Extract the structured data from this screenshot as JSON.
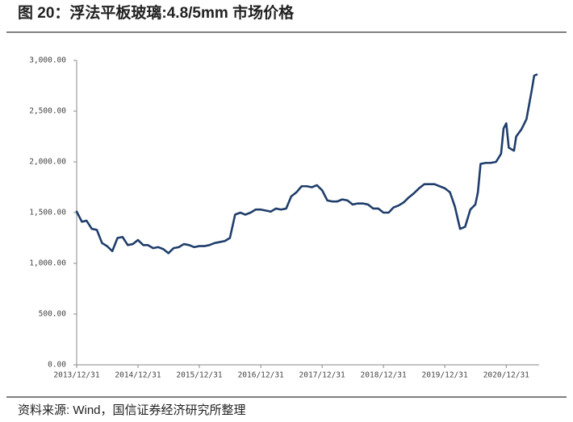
{
  "chart_data": {
    "type": "line",
    "title": "图 20：浮法平板玻璃:4.8/5mm 市场价格",
    "source": "资料来源: Wind，国信证券经济研究所整理",
    "xlim": [
      "2013/12/31",
      "2021/06/30"
    ],
    "xticks": [
      "2013/12/31",
      "2014/12/31",
      "2015/12/31",
      "2016/12/31",
      "2017/12/31",
      "2018/12/31",
      "2019/12/31",
      "2020/12/31"
    ],
    "ylim": [
      0,
      3000
    ],
    "yticks": [
      {
        "value": 0,
        "label": "0.00"
      },
      {
        "value": 500,
        "label": "500.00"
      },
      {
        "value": 1000,
        "label": "1,000.00"
      },
      {
        "value": 1500,
        "label": "1,500.00"
      },
      {
        "value": 2000,
        "label": "2,000.00"
      },
      {
        "value": 2500,
        "label": "2,500.00"
      },
      {
        "value": 3000,
        "label": "3,000.00"
      }
    ],
    "x": [
      "2013/12/31",
      "2014/01/31",
      "2014/02/28",
      "2014/03/31",
      "2014/04/30",
      "2014/05/31",
      "2014/06/30",
      "2014/07/31",
      "2014/08/31",
      "2014/09/30",
      "2014/10/31",
      "2014/11/30",
      "2014/12/31",
      "2015/01/31",
      "2015/02/28",
      "2015/03/31",
      "2015/04/30",
      "2015/05/31",
      "2015/06/30",
      "2015/07/31",
      "2015/08/31",
      "2015/09/30",
      "2015/10/31",
      "2015/11/30",
      "2015/12/31",
      "2016/01/31",
      "2016/02/29",
      "2016/03/31",
      "2016/04/30",
      "2016/05/31",
      "2016/06/30",
      "2016/07/31",
      "2016/08/31",
      "2016/09/30",
      "2016/10/31",
      "2016/11/30",
      "2016/12/31",
      "2017/01/31",
      "2017/02/28",
      "2017/03/31",
      "2017/04/30",
      "2017/05/31",
      "2017/06/30",
      "2017/07/31",
      "2017/08/31",
      "2017/09/30",
      "2017/10/31",
      "2017/11/30",
      "2017/12/31",
      "2018/01/31",
      "2018/02/28",
      "2018/03/31",
      "2018/04/30",
      "2018/05/31",
      "2018/06/30",
      "2018/07/31",
      "2018/08/31",
      "2018/09/30",
      "2018/10/31",
      "2018/11/30",
      "2018/12/31",
      "2019/01/31",
      "2019/02/28",
      "2019/03/31",
      "2019/04/30",
      "2019/05/31",
      "2019/06/30",
      "2019/07/31",
      "2019/08/31",
      "2019/09/30",
      "2019/10/31",
      "2019/11/30",
      "2019/12/31",
      "2020/01/31",
      "2020/02/29",
      "2020/03/31",
      "2020/04/30",
      "2020/05/31",
      "2020/06/30",
      "2020/07/15",
      "2020/07/31",
      "2020/08/31",
      "2020/09/30",
      "2020/10/31",
      "2020/11/30",
      "2020/12/15",
      "2020/12/31",
      "2021/01/15",
      "2021/02/15",
      "2021/02/28",
      "2021/03/31",
      "2021/04/30",
      "2021/05/31",
      "2021/06/15",
      "2021/06/30"
    ],
    "series": [
      {
        "color": "#1f3d6b",
        "values": [
          1510,
          1410,
          1420,
          1340,
          1330,
          1200,
          1170,
          1120,
          1250,
          1260,
          1180,
          1190,
          1230,
          1180,
          1180,
          1150,
          1160,
          1140,
          1100,
          1150,
          1160,
          1190,
          1180,
          1160,
          1170,
          1170,
          1180,
          1200,
          1210,
          1220,
          1250,
          1480,
          1500,
          1480,
          1500,
          1530,
          1530,
          1520,
          1510,
          1540,
          1530,
          1540,
          1660,
          1700,
          1760,
          1760,
          1750,
          1770,
          1720,
          1620,
          1610,
          1610,
          1630,
          1620,
          1580,
          1590,
          1590,
          1580,
          1540,
          1540,
          1500,
          1500,
          1550,
          1570,
          1600,
          1650,
          1690,
          1740,
          1780,
          1780,
          1780,
          1760,
          1740,
          1700,
          1560,
          1340,
          1360,
          1530,
          1580,
          1700,
          1980,
          1990,
          1990,
          2000,
          2080,
          2330,
          2380,
          2140,
          2110,
          2250,
          2320,
          2420,
          2700,
          2850,
          2860
        ]
      }
    ]
  }
}
